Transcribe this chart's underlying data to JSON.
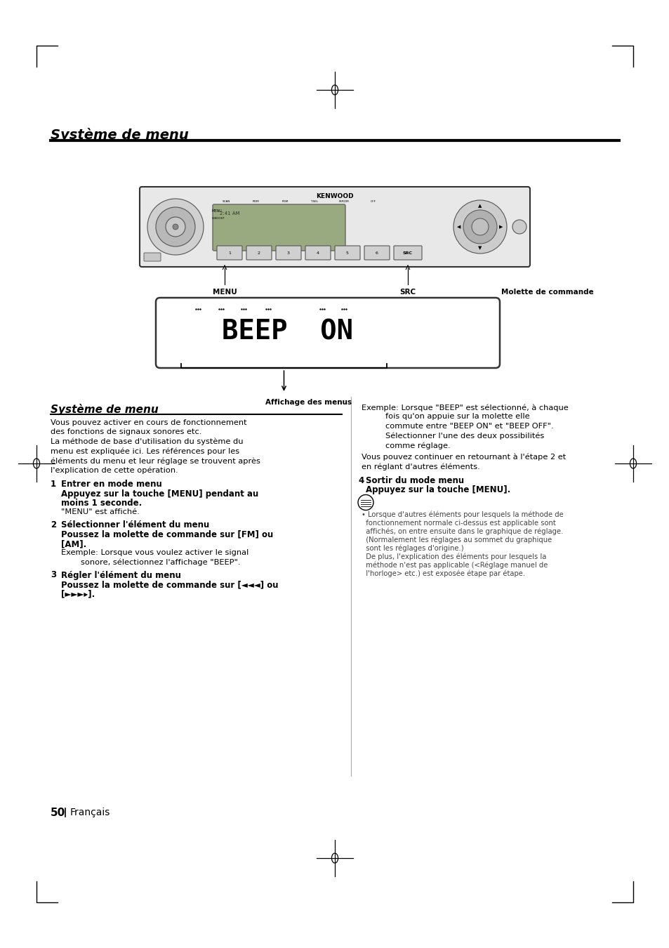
{
  "bg_color": "#ffffff",
  "title": "Système de menu",
  "page_number": "50",
  "page_lang": "Français",
  "section_title": "Système de menu",
  "intro_text": [
    "Vous pouvez activer en cours de fonctionnement",
    "des fonctions de signaux sonores etc.",
    "La méthode de base d'utilisation du système du",
    "menu est expliquée ici. Les références pour les",
    "éléments du menu et leur réglage se trouvent après",
    "l'explication de cette opération."
  ],
  "steps_left": [
    {
      "num": "1",
      "heading": "Entrer en mode menu",
      "bold_lines": [
        "Appuyez sur la touche [MENU] pendant au",
        "moins 1 seconde."
      ],
      "normal_lines": [
        "\"MENU\" est affiché."
      ]
    },
    {
      "num": "2",
      "heading": "Sélectionner l'élément du menu",
      "bold_lines": [
        "Poussez la molette de commande sur [FM] ou",
        "[AM]."
      ],
      "normal_lines": [
        "Exemple: Lorsque vous voulez activer le signal",
        "        sonore, sélectionnez l'affichage \"BEEP\"."
      ]
    },
    {
      "num": "3",
      "heading": "Régler l'élément du menu",
      "bold_lines": [
        "Poussez la molette de commande sur [◄◄◄] ou",
        "[►►►▸]."
      ],
      "normal_lines": []
    }
  ],
  "right_example_lines": [
    "Exemple: Lorsque \"BEEP\" est sélectionné, à chaque",
    "         fois qu'on appuie sur la molette elle",
    "         commute entre \"BEEP ON\" et \"BEEP OFF\".",
    "         Sélectionner l'une des deux possibilités",
    "         comme réglage."
  ],
  "right_continue": "Vous pouvez continuer en retournant à l'étape 2 et",
  "right_continue2": "en réglant d'autres éléments.",
  "step4_num": "4",
  "step4_heading": "Sortir du mode menu",
  "step4_bold": "Appuyez sur la touche [MENU].",
  "note_lines": [
    "• Lorsque d'autres éléments pour lesquels la méthode de",
    "  fonctionnement normale ci-dessus est applicable sont",
    "  affichés, on entre ensuite dans le graphique de réglage.",
    "  (Normalement les réglages au sommet du graphique",
    "  sont les réglages d'origine.)",
    "  De plus, l'explication des éléments pour lesquels la",
    "  méthode n'est pas applicable (<Réglage manuel de",
    "  l'horloge> etc.) est exposée étape par étape."
  ],
  "label_menu": "MENU",
  "label_src": "SRC",
  "label_molette": "Molette de commande",
  "label_affichage": "Affichage des menus"
}
